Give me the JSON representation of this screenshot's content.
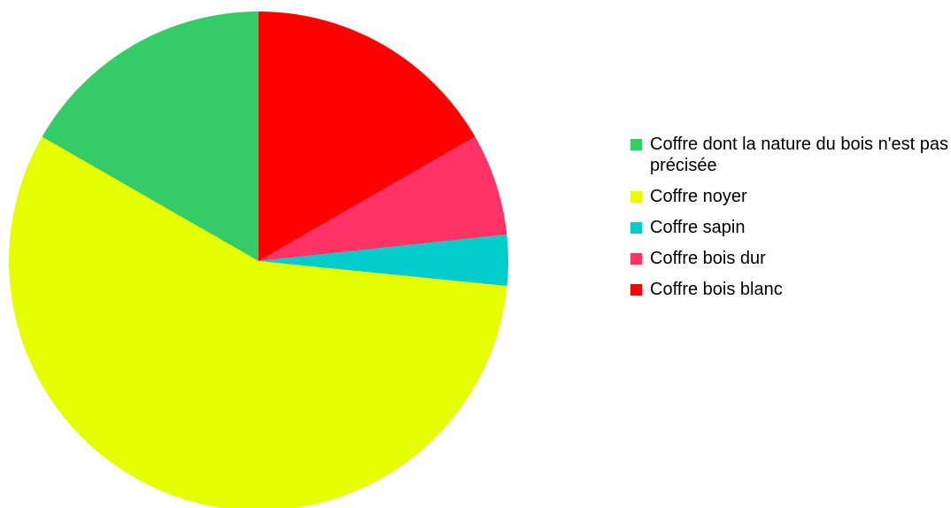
{
  "chart_data": {
    "type": "pie",
    "title": "",
    "start": "12 o'clock",
    "direction": "clockwise",
    "slices": [
      {
        "label": "Coffre bois blanc",
        "value": 16.7,
        "color": "#ff0000"
      },
      {
        "label": "Coffre bois dur",
        "value": 6.6,
        "color": "#ff3366"
      },
      {
        "label": "Coffre sapin",
        "value": 3.3,
        "color": "#00cccc"
      },
      {
        "label": "Coffre noyer",
        "value": 56.7,
        "color": "#e6ff00"
      },
      {
        "label": "Coffre dont la nature du bois n'est pas précisée",
        "value": 16.7,
        "color": "#33cc66"
      }
    ],
    "legend": {
      "placement": "right",
      "items": [
        {
          "label": "Coffre dont la nature du bois n'est pas précisée",
          "color": "#33cc66"
        },
        {
          "label": "Coffre noyer",
          "color": "#e6ff00"
        },
        {
          "label": "Coffre sapin",
          "color": "#00cccc"
        },
        {
          "label": "Coffre bois dur",
          "color": "#ff3366"
        },
        {
          "label": "Coffre bois blanc",
          "color": "#ff0000"
        }
      ]
    }
  }
}
